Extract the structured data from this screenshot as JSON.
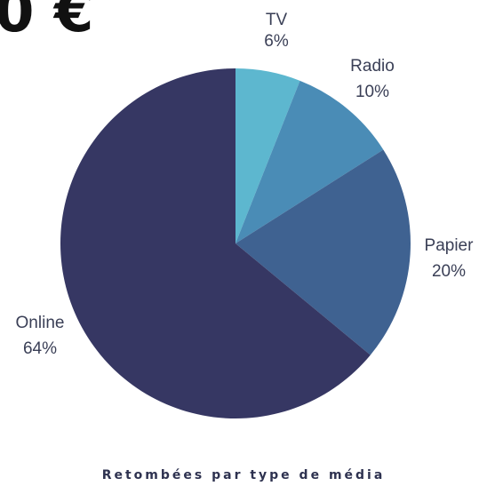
{
  "header": {
    "visible_text": "0 €"
  },
  "caption": "Retombées par type de média",
  "colors": {
    "tv": "#5db7cf",
    "radio": "#4a8cb6",
    "papier": "#3f6291",
    "online": "#363763",
    "label_text": "#3a3f56"
  },
  "chart_data": {
    "type": "pie",
    "title": "Retombées par type de média",
    "slices": [
      {
        "label": "TV",
        "value": 6,
        "value_label": "6%",
        "color": "#5db7cf"
      },
      {
        "label": "Radio",
        "value": 10,
        "value_label": "10%",
        "color": "#4a8cb6"
      },
      {
        "label": "Papier",
        "value": 20,
        "value_label": "20%",
        "color": "#3f6291"
      },
      {
        "label": "Online",
        "value": 64,
        "value_label": "64%",
        "color": "#363763"
      }
    ],
    "start": "12 o'clock",
    "direction": "clockwise",
    "legend": "none"
  }
}
